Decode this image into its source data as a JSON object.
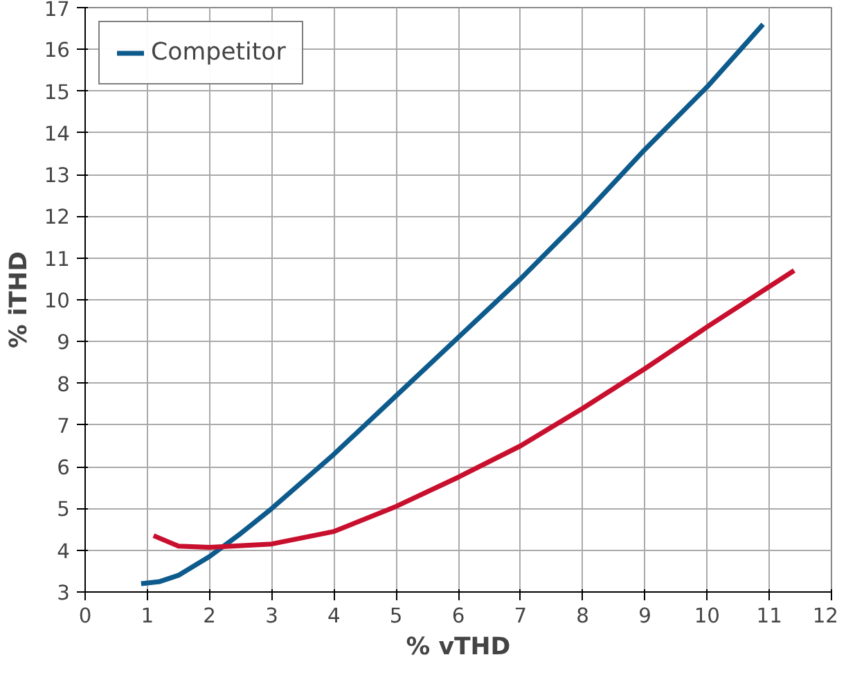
{
  "chart_data": {
    "type": "line",
    "xlabel": "% vTHD",
    "ylabel": "% iTHD",
    "xlim": [
      0,
      12
    ],
    "ylim": [
      3,
      17
    ],
    "xticks": [
      0,
      1,
      2,
      3,
      4,
      5,
      6,
      7,
      8,
      9,
      10,
      11,
      12
    ],
    "yticks": [
      3,
      4,
      5,
      6,
      7,
      8,
      9,
      10,
      11,
      12,
      13,
      14,
      15,
      16,
      17
    ],
    "grid": true,
    "legend": "top left",
    "marker": "none",
    "line_style": "solid",
    "series": [
      {
        "name": "Competitor",
        "color": "#0d5a8c",
        "x": [
          0.9,
          1.2,
          1.5,
          2,
          2.5,
          3,
          4,
          5,
          6,
          7,
          8,
          9,
          10,
          10.9
        ],
        "values": [
          3.2,
          3.25,
          3.4,
          3.85,
          4.4,
          5.0,
          6.3,
          7.7,
          9.1,
          10.5,
          12.0,
          13.6,
          15.1,
          16.6
        ]
      },
      {
        "color": "#c8102e",
        "x": [
          1.1,
          1.5,
          2,
          3,
          4,
          5,
          6,
          7,
          8,
          9,
          10,
          11.4
        ],
        "values": [
          4.35,
          4.1,
          4.07,
          4.15,
          4.45,
          5.05,
          5.75,
          6.5,
          7.4,
          8.35,
          9.35,
          10.7
        ]
      }
    ]
  }
}
